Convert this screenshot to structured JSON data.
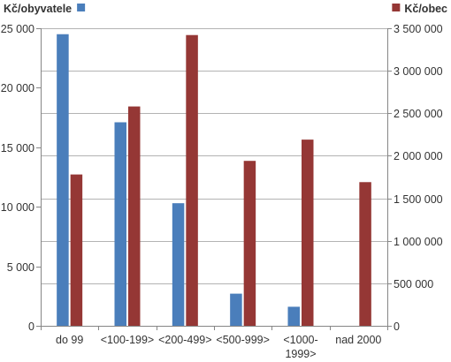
{
  "chart_data": {
    "type": "bar",
    "categories": [
      "do 99",
      "<100-199>",
      "<200-499>",
      "<500-999>",
      "<1000-1999>",
      "nad 2000"
    ],
    "category_lines": [
      [
        "do 99"
      ],
      [
        "<100-199>"
      ],
      [
        "<200-499>"
      ],
      [
        "<500-999>"
      ],
      [
        "<1000-",
        "1999>"
      ],
      [
        "nad 2000"
      ]
    ],
    "series": [
      {
        "name": "Kč/obyvatele",
        "axis": "left",
        "color": "#4A7EBB",
        "values": [
          24500,
          17100,
          10300,
          2700,
          1600,
          0
        ]
      },
      {
        "name": "Kč/obec",
        "axis": "right",
        "color": "#953735",
        "values": [
          1780000,
          2580000,
          3420000,
          1940000,
          2190000,
          1690000
        ]
      }
    ],
    "y_left": {
      "ylim": [
        0,
        25000
      ],
      "ticks": [
        0,
        5000,
        10000,
        15000,
        20000,
        25000
      ],
      "tick_labels": [
        "0",
        "5 000",
        "10 000",
        "15 000",
        "20 000",
        "25 000"
      ]
    },
    "y_right": {
      "ylim": [
        0,
        3500000
      ],
      "ticks": [
        0,
        500000,
        1000000,
        1500000,
        2000000,
        2500000,
        3000000,
        3500000
      ],
      "tick_labels": [
        "0",
        "500 000",
        "1 000 000",
        "1 500 000",
        "2 000 000",
        "2 500 000",
        "3 000 000",
        "3 500 000"
      ]
    },
    "grid": true,
    "legend": "top"
  }
}
